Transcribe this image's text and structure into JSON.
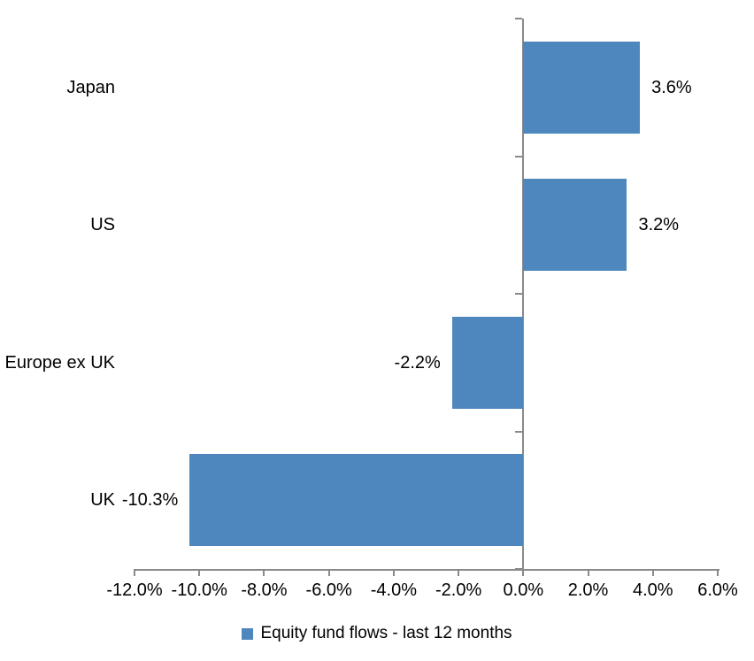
{
  "chart_data": {
    "type": "bar",
    "orientation": "horizontal",
    "title": "",
    "categories": [
      "Japan",
      "US",
      "Europe ex UK",
      "UK"
    ],
    "series": [
      {
        "name": "Equity fund flows - last 12 months",
        "values": [
          3.6,
          3.2,
          -2.2,
          -10.3
        ],
        "data_labels": [
          "3.6%",
          "3.2%",
          "-2.2%",
          "-10.3%"
        ]
      }
    ],
    "xlim": [
      -12,
      6
    ],
    "x_ticks": {
      "values": [
        -12,
        -10,
        -8,
        -6,
        -4,
        -2,
        0,
        2,
        4,
        6
      ],
      "labels": [
        "-12.0%",
        "-10.0%",
        "-8.0%",
        "-6.0%",
        "-4.0%",
        "-2.0%",
        "0.0%",
        "2.0%",
        "4.0%",
        "6.0%"
      ]
    },
    "grid": false,
    "legend": "Equity fund flows - last 12 months",
    "legend_position": "bottom",
    "colors": {
      "bar": "#4e87be",
      "axis": "#8a8a8a",
      "text": "#000000"
    }
  }
}
